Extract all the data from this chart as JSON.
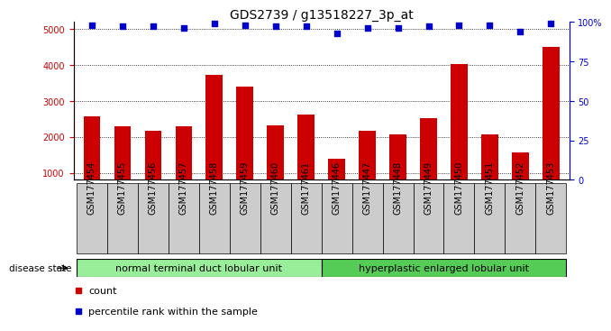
{
  "title": "GDS2739 / g13518227_3p_at",
  "samples": [
    "GSM177454",
    "GSM177455",
    "GSM177456",
    "GSM177457",
    "GSM177458",
    "GSM177459",
    "GSM177460",
    "GSM177461",
    "GSM177446",
    "GSM177447",
    "GSM177448",
    "GSM177449",
    "GSM177450",
    "GSM177451",
    "GSM177452",
    "GSM177453"
  ],
  "counts": [
    2570,
    2290,
    2160,
    2290,
    3720,
    3400,
    2310,
    2630,
    1380,
    2180,
    2070,
    2530,
    4020,
    2070,
    1560,
    4510
  ],
  "percentiles": [
    98,
    97,
    97,
    96,
    99,
    98,
    97,
    97,
    93,
    96,
    96,
    97,
    98,
    98,
    94,
    99
  ],
  "bar_color": "#cc0000",
  "dot_color": "#0000cc",
  "ylim_left": [
    800,
    5200
  ],
  "ylim_right": [
    0,
    100
  ],
  "yticks_left": [
    1000,
    2000,
    3000,
    4000,
    5000
  ],
  "yticks_right": [
    0,
    25,
    50,
    75,
    100
  ],
  "yticklabels_right": [
    "0",
    "25",
    "50",
    "75",
    "100%"
  ],
  "groups": [
    {
      "label": "normal terminal duct lobular unit",
      "start": 0,
      "end": 8,
      "color": "#99ee99"
    },
    {
      "label": "hyperplastic enlarged lobular unit",
      "start": 8,
      "end": 16,
      "color": "#55cc55"
    }
  ],
  "disease_state_label": "disease state",
  "legend_count_label": "count",
  "legend_percentile_label": "percentile rank within the sample",
  "bar_color_legend": "#cc0000",
  "dot_color_legend": "#0000cc",
  "tick_label_color_left": "#cc0000",
  "tick_label_color_right": "#0000cc",
  "title_fontsize": 10,
  "tick_fontsize": 7,
  "group_fontsize": 8,
  "legend_fontsize": 8,
  "xtick_bg_color": "#cccccc"
}
